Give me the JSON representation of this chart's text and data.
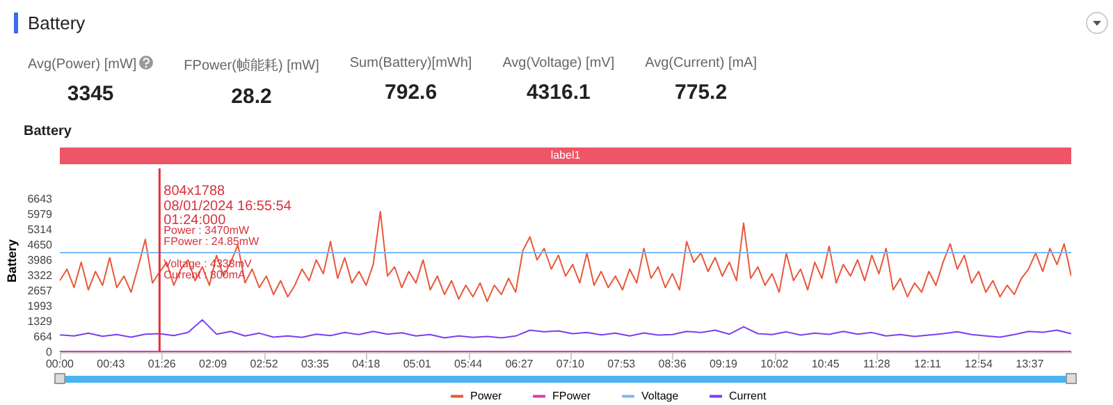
{
  "chart_data": {
    "type": "line",
    "title": "Battery",
    "subtitle": "Battery",
    "ylabel": "Battery",
    "annotations": [
      "Avg(Power) [mW]",
      "3345",
      "FPower(帧能耗) [mW]",
      "28.2",
      "Sum(Battery)[mWh]",
      "792.6",
      "Avg(Voltage) [mV]",
      "4316.1",
      "Avg(Current) [mA]",
      "775.2",
      "804x1788",
      "08/01/2024 16:55:54",
      "01:24:000",
      "Power   : 3470mW",
      "FPower : 24.85mW",
      "Voltage : 4338mV",
      "Current : 800mA"
    ],
    "x": [
      0,
      6,
      12,
      18,
      24,
      30,
      36,
      42,
      48,
      54,
      60,
      66,
      72,
      78,
      84,
      90,
      96,
      102,
      108,
      114,
      120,
      126,
      132,
      138,
      144,
      150,
      156,
      162,
      168,
      174,
      180,
      186,
      192,
      198,
      204,
      210,
      216,
      222,
      228,
      234,
      240,
      246,
      252,
      258,
      264,
      270,
      276,
      282,
      288,
      294,
      300,
      306,
      312,
      318,
      324,
      330,
      336,
      342,
      348,
      354,
      360,
      366,
      372,
      378,
      384,
      390,
      396,
      402,
      408,
      414,
      420,
      426,
      432,
      438,
      444,
      450,
      456,
      462,
      468,
      474,
      480,
      486,
      492,
      498,
      504,
      510,
      516,
      522,
      528,
      534,
      540,
      546,
      552,
      558,
      564,
      570,
      576,
      582,
      588,
      594,
      600,
      606,
      612,
      618,
      624,
      630,
      636,
      642,
      648,
      654,
      660,
      666,
      672,
      678,
      684,
      690,
      696,
      702,
      708,
      714,
      720,
      726,
      732,
      738,
      744,
      750,
      756,
      762,
      768,
      774,
      780,
      786,
      792,
      798,
      804,
      810,
      816,
      822,
      828,
      834,
      840,
      846,
      852
    ],
    "series": [
      {
        "name": "Power",
        "color": "#e8573a",
        "values": [
          3100,
          3600,
          2800,
          3900,
          2700,
          3500,
          2900,
          4100,
          2800,
          3300,
          2600,
          3700,
          4890,
          3000,
          3470,
          3900,
          2900,
          3600,
          4000,
          3100,
          3700,
          2900,
          4200,
          3300,
          3900,
          4650,
          3000,
          3600,
          2800,
          3300,
          2500,
          3100,
          2400,
          2900,
          3600,
          3100,
          4000,
          3400,
          4800,
          3200,
          4100,
          3000,
          3500,
          2900,
          3800,
          6100,
          3300,
          3700,
          2800,
          3500,
          3000,
          4000,
          2700,
          3300,
          2500,
          3100,
          2300,
          2900,
          2400,
          3000,
          2200,
          2900,
          2500,
          3200,
          2600,
          4400,
          5000,
          4000,
          4500,
          3600,
          4200,
          3300,
          3800,
          3000,
          4300,
          2900,
          3500,
          2800,
          3300,
          2700,
          3600,
          3000,
          4500,
          3200,
          3700,
          2800,
          3400,
          2700,
          4800,
          3900,
          4300,
          3500,
          4100,
          3300,
          3900,
          3100,
          5600,
          3200,
          3700,
          2900,
          3400,
          2600,
          4300,
          3100,
          3600,
          2700,
          3900,
          3200,
          4600,
          3000,
          3800,
          3300,
          4000,
          3100,
          4200,
          3400,
          4500,
          2700,
          3200,
          2400,
          3000,
          2600,
          3500,
          2900,
          3900,
          4700,
          3600,
          4200,
          3000,
          3500,
          2600,
          3100,
          2400,
          2900,
          2500,
          3200,
          3600,
          4300,
          3500,
          4500,
          3800,
          4700,
          3300
        ]
      },
      {
        "name": "FPower",
        "color": "#d63bc0",
        "x": [
          0,
          852
        ],
        "values": [
          28,
          28
        ]
      },
      {
        "name": "Voltage",
        "color": "#7db8f5",
        "x": [
          0,
          852
        ],
        "values": [
          4316,
          4316
        ]
      },
      {
        "name": "Current",
        "color": "#7a3ff0",
        "x": [
          0,
          12,
          24,
          36,
          48,
          60,
          72,
          84,
          96,
          108,
          120,
          132,
          144,
          156,
          168,
          180,
          192,
          204,
          216,
          228,
          240,
          252,
          264,
          276,
          288,
          300,
          312,
          324,
          336,
          348,
          360,
          372,
          384,
          396,
          408,
          420,
          432,
          444,
          456,
          468,
          480,
          492,
          504,
          516,
          528,
          540,
          552,
          564,
          576,
          588,
          600,
          612,
          624,
          636,
          648,
          660,
          672,
          684,
          696,
          708,
          720,
          732,
          744,
          756,
          768,
          780,
          792,
          804,
          816,
          828,
          840,
          852
        ],
        "values": [
          750,
          700,
          820,
          690,
          760,
          650,
          780,
          800,
          720,
          850,
          1400,
          780,
          900,
          700,
          820,
          650,
          700,
          640,
          780,
          720,
          850,
          760,
          900,
          780,
          840,
          700,
          760,
          620,
          700,
          640,
          680,
          620,
          700,
          950,
          880,
          920,
          800,
          850,
          750,
          820,
          700,
          830,
          740,
          760,
          900,
          850,
          950,
          780,
          1100,
          800,
          760,
          880,
          740,
          820,
          770,
          900,
          780,
          850,
          700,
          760,
          680,
          740,
          800,
          880,
          760,
          700,
          650,
          760,
          900,
          860,
          950,
          800
        ]
      }
    ],
    "xlim": [
      0,
      852
    ],
    "xticks": [
      {
        "value": 0,
        "label": "00:00"
      },
      {
        "value": 43,
        "label": "00:43"
      },
      {
        "value": 86,
        "label": "01:26"
      },
      {
        "value": 129,
        "label": "02:09"
      },
      {
        "value": 172,
        "label": "02:52"
      },
      {
        "value": 215,
        "label": "03:35"
      },
      {
        "value": 258,
        "label": "04:18"
      },
      {
        "value": 301,
        "label": "05:01"
      },
      {
        "value": 344,
        "label": "05:44"
      },
      {
        "value": 387,
        "label": "06:27"
      },
      {
        "value": 430,
        "label": "07:10"
      },
      {
        "value": 473,
        "label": "07:53"
      },
      {
        "value": 516,
        "label": "08:36"
      },
      {
        "value": 559,
        "label": "09:19"
      },
      {
        "value": 602,
        "label": "10:02"
      },
      {
        "value": 645,
        "label": "10:45"
      },
      {
        "value": 688,
        "label": "11:28"
      },
      {
        "value": 731,
        "label": "12:11"
      },
      {
        "value": 774,
        "label": "12:54"
      },
      {
        "value": 817,
        "label": "13:37"
      }
    ],
    "ylim": [
      0,
      7971
    ],
    "yticks": [
      0,
      664,
      1329,
      1993,
      2657,
      3322,
      3986,
      4650,
      5314,
      5979,
      6643
    ],
    "ref_lines": [
      {
        "axis": "x",
        "value": 84,
        "color": "#e0303a"
      }
    ],
    "bands": [
      {
        "axis": "x",
        "from": 0,
        "to": 852,
        "label": "label1"
      }
    ],
    "legend": "bottom",
    "grid": false,
    "marker": "none",
    "line_style": "solid"
  }
}
